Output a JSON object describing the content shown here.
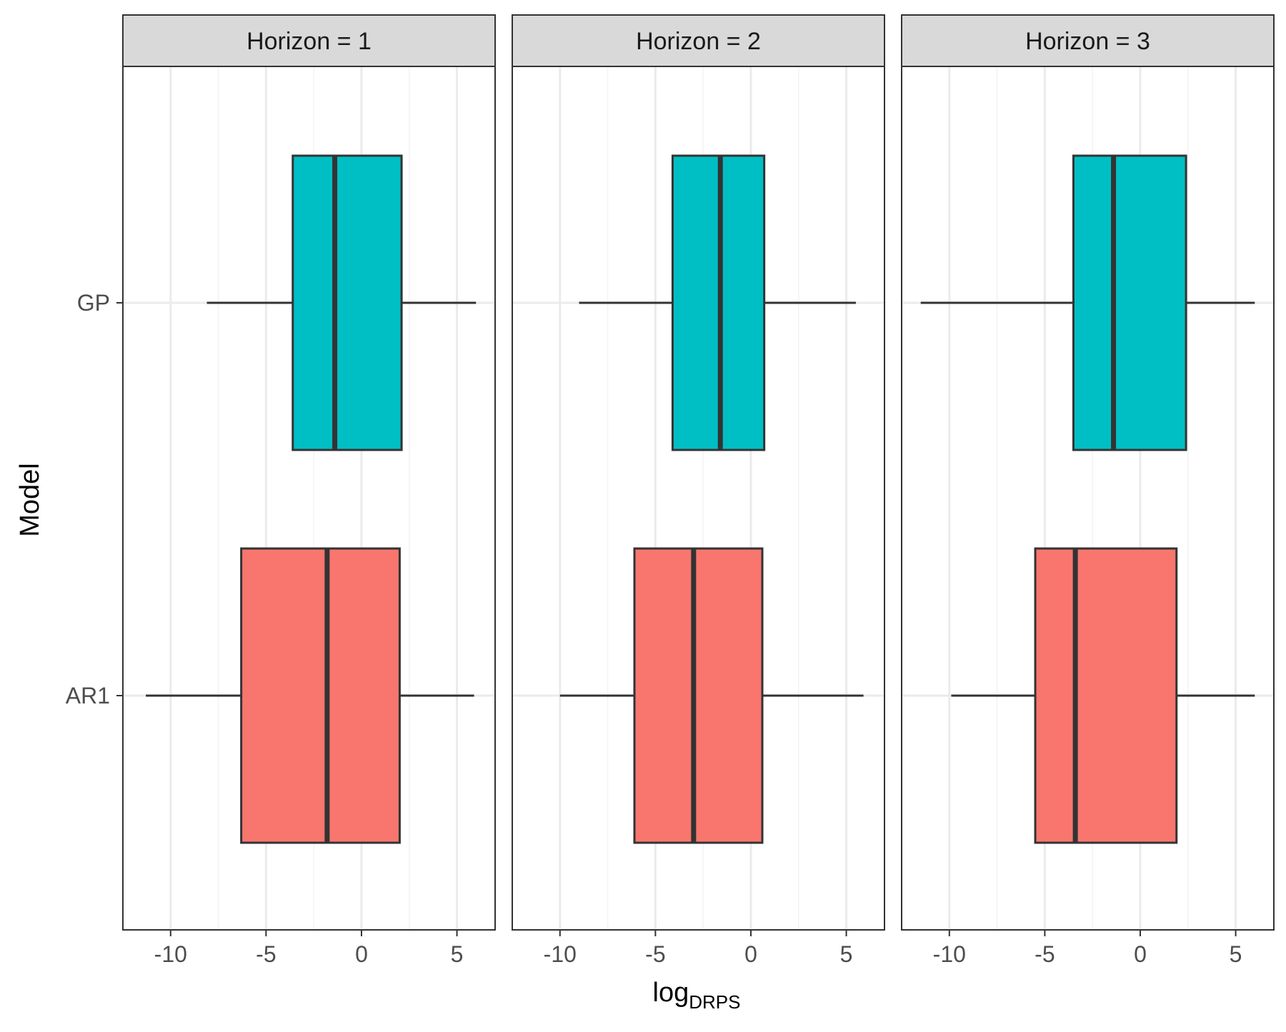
{
  "chart_data": {
    "type": "boxplot",
    "orientation": "horizontal",
    "xlabel": "log",
    "xlabel_subscript": "DRPS",
    "ylabel": "Model",
    "xlim": [
      -12.5,
      7.0
    ],
    "x_ticks": [
      -10,
      -5,
      0,
      5
    ],
    "x_tick_labels": [
      "-10",
      "-5",
      "0",
      "5"
    ],
    "categories": [
      "GP",
      "AR1"
    ],
    "grid": true,
    "legend": "none",
    "colors": {
      "GP": "#00BFC4",
      "AR1": "#F8766D",
      "outline": "#333333",
      "grid_major": "#EBEBEB",
      "strip": "#D9D9D9"
    },
    "facets": [
      {
        "label": "Horizon = 1",
        "boxes": [
          {
            "model": "GP",
            "whisker_low": -8.1,
            "q1": -3.6,
            "median": -1.4,
            "q3": 2.1,
            "whisker_high": 6.0
          },
          {
            "model": "AR1",
            "whisker_low": -11.3,
            "q1": -6.3,
            "median": -1.8,
            "q3": 2.0,
            "whisker_high": 5.9
          }
        ]
      },
      {
        "label": "Horizon = 2",
        "boxes": [
          {
            "model": "GP",
            "whisker_low": -9.0,
            "q1": -4.1,
            "median": -1.6,
            "q3": 0.7,
            "whisker_high": 5.5
          },
          {
            "model": "AR1",
            "whisker_low": -10.0,
            "q1": -6.1,
            "median": -3.0,
            "q3": 0.6,
            "whisker_high": 5.9
          }
        ]
      },
      {
        "label": "Horizon = 3",
        "boxes": [
          {
            "model": "GP",
            "whisker_low": -11.5,
            "q1": -3.5,
            "median": -1.4,
            "q3": 2.4,
            "whisker_high": 6.0
          },
          {
            "model": "AR1",
            "whisker_low": -9.9,
            "q1": -5.5,
            "median": -3.4,
            "q3": 1.9,
            "whisker_high": 6.0
          }
        ]
      }
    ]
  }
}
